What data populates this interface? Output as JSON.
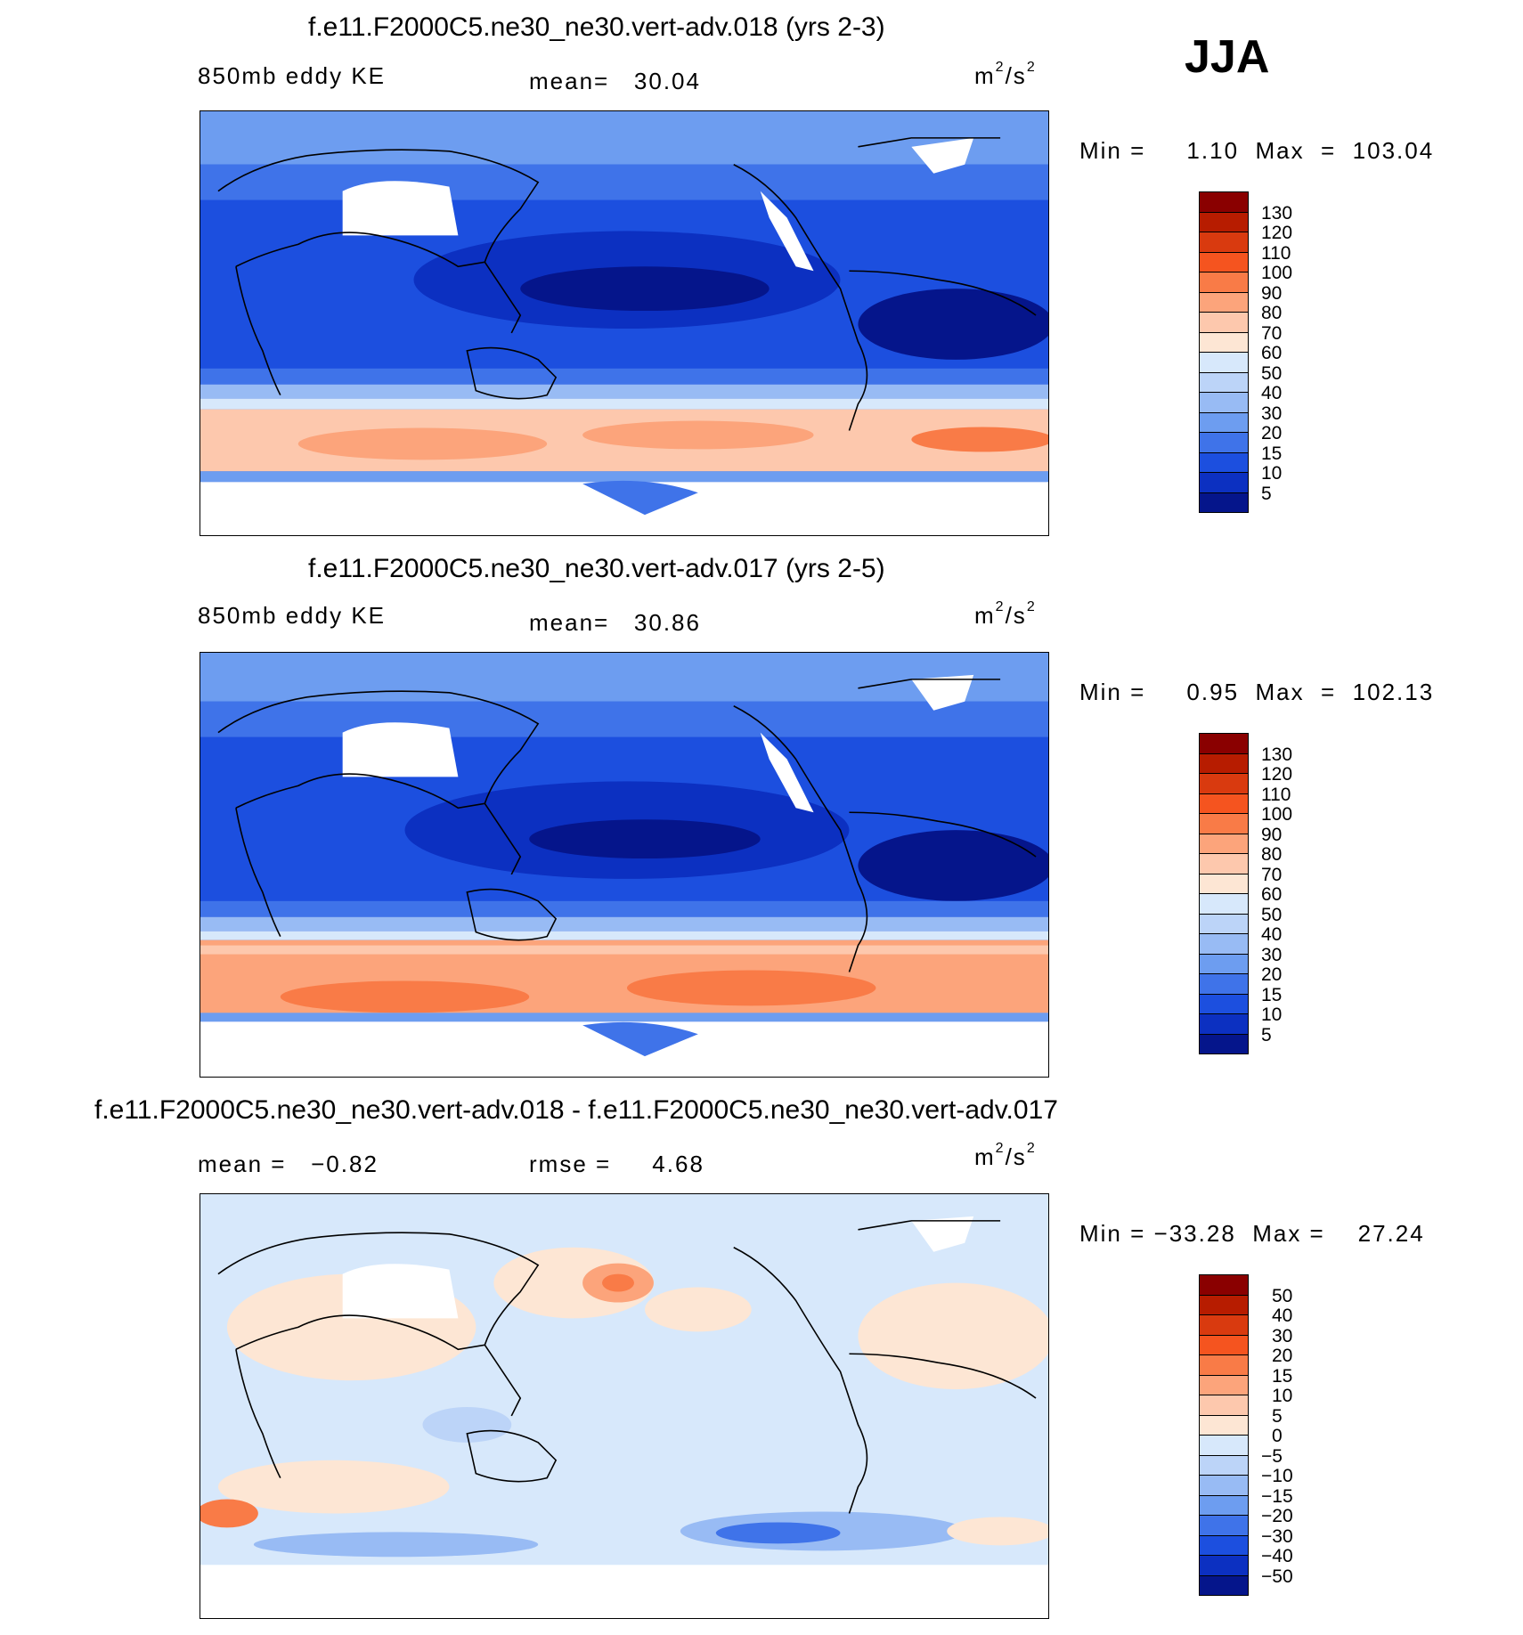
{
  "season": "JJA",
  "units": {
    "base": "m",
    "exp": "2",
    "den": "/s",
    "den_exp": "2"
  },
  "panels": [
    {
      "title": "f.e11.F2000C5.ne30_ne30.vert-adv.018 (yrs 2-3)",
      "left_label": "850mb eddy KE",
      "stat": "mean=   30.04",
      "minmax": "Min =     1.10  Max  =  103.04",
      "levels": [
        "130",
        "120",
        "110",
        "100",
        "90",
        "80",
        "70",
        "60",
        "50",
        "40",
        "30",
        "20",
        "15",
        "10",
        "5"
      ],
      "colors": [
        "#8a0000",
        "#b71c00",
        "#d93a0f",
        "#f5541f",
        "#f97b47",
        "#fca47b",
        "#fdc8ad",
        "#fde6d4",
        "#d7e8fb",
        "#bcd4f8",
        "#98bbf4",
        "#6d9df0",
        "#3f73e9",
        "#1c4fdf",
        "#0c30c1",
        "#05158b"
      ]
    },
    {
      "title": "f.e11.F2000C5.ne30_ne30.vert-adv.017 (yrs 2-5)",
      "left_label": "850mb eddy KE",
      "stat": "mean=   30.86",
      "minmax": "Min =     0.95  Max  =  102.13",
      "levels": [
        "130",
        "120",
        "110",
        "100",
        "90",
        "80",
        "70",
        "60",
        "50",
        "40",
        "30",
        "20",
        "15",
        "10",
        "5"
      ],
      "colors": [
        "#8a0000",
        "#b71c00",
        "#d93a0f",
        "#f5541f",
        "#f97b47",
        "#fca47b",
        "#fdc8ad",
        "#fde6d4",
        "#d7e8fb",
        "#bcd4f8",
        "#98bbf4",
        "#6d9df0",
        "#3f73e9",
        "#1c4fdf",
        "#0c30c1",
        "#05158b"
      ]
    },
    {
      "title": "f.e11.F2000C5.ne30_ne30.vert-adv.018 - f.e11.F2000C5.ne30_ne30.vert-adv.017",
      "left_label": "mean =   −0.82",
      "stat": "rmse =     4.68",
      "minmax": "Min = −33.28  Max =    27.24",
      "levels": [
        "50",
        "40",
        "30",
        "20",
        "15",
        "10",
        "5",
        "0",
        "−5",
        "−10",
        "−15",
        "−20",
        "−30",
        "−40",
        "−50"
      ],
      "colors": [
        "#8a0000",
        "#b71c00",
        "#d93a0f",
        "#f5541f",
        "#f97b47",
        "#fca47b",
        "#fdc8ad",
        "#fde6d4",
        "#d7e8fb",
        "#bcd4f8",
        "#98bbf4",
        "#6d9df0",
        "#3f73e9",
        "#1c4fdf",
        "#0c30c1",
        "#05158b"
      ]
    }
  ]
}
